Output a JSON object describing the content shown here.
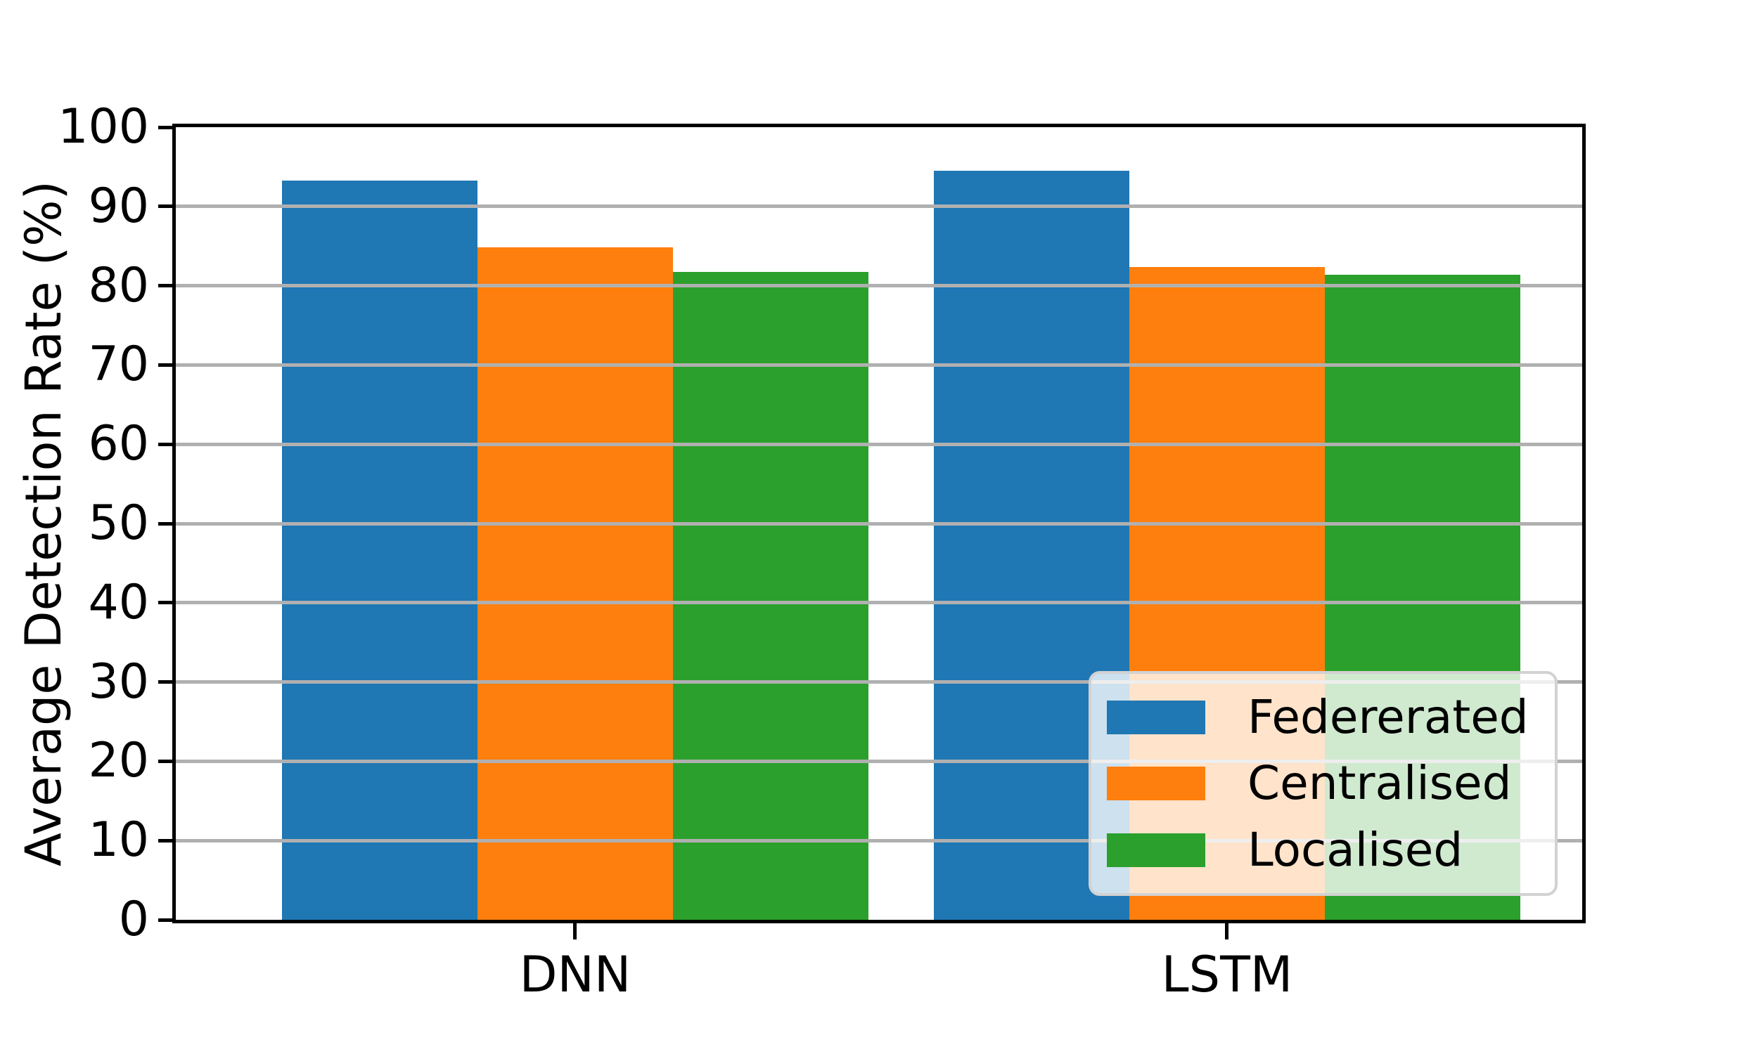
{
  "chart_data": {
    "type": "bar",
    "categories": [
      "DNN",
      "LSTM"
    ],
    "series": [
      {
        "name": "Federerated",
        "color": "#1f77b4",
        "values": [
          93.3,
          94.5
        ]
      },
      {
        "name": "Centralised",
        "color": "#ff7f0e",
        "values": [
          84.8,
          82.4
        ]
      },
      {
        "name": "Localised",
        "color": "#2ca02c",
        "values": [
          81.7,
          81.4
        ]
      }
    ],
    "title": "",
    "xlabel": "",
    "ylabel": "Average Detection Rate (%)",
    "ylim": [
      0,
      100
    ],
    "yticks": [
      0,
      10,
      20,
      30,
      40,
      50,
      60,
      70,
      80,
      90,
      100
    ],
    "grid": true,
    "grid_color": "#b0b0b0",
    "axis_color": "#000000",
    "legend": {
      "position": "lower right",
      "labels": [
        "Federerated",
        "Centralised",
        "Localised"
      ]
    }
  }
}
